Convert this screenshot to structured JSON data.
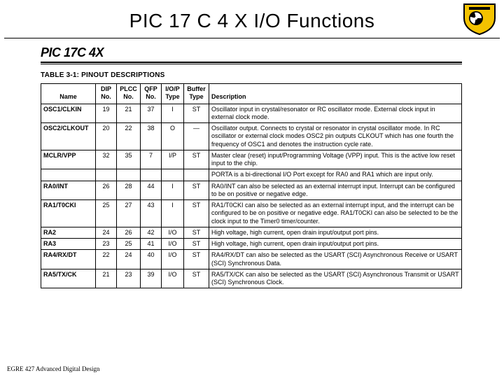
{
  "slide": {
    "title": "PIC 17 C 4 X I/O Functions",
    "chip_label": "PIC 17C 4X",
    "table_caption": "TABLE 3-1:    PINOUT DESCRIPTIONS",
    "footer": "EGRE 427 Advanced Digital Design"
  },
  "logo": {
    "shield_fill": "#f3c200",
    "shield_stroke": "#000000",
    "inner_fill": "#000000"
  },
  "headers": {
    "name": "Name",
    "dip": "DIP No.",
    "plcc": "PLCC No.",
    "qfp": "QFP No.",
    "iop": "I/O/P Type",
    "buffer": "Buffer Type",
    "desc": "Description"
  },
  "rows": [
    {
      "name": "OSC1/CLKIN",
      "dip": "19",
      "plcc": "21",
      "qfp": "37",
      "iop": "I",
      "buf": "ST",
      "desc": "Oscillator input in crystal/resonator or RC oscillator mode. External clock input in external clock mode.",
      "indent": false
    },
    {
      "name": "OSC2/CLKOUT",
      "dip": "20",
      "plcc": "22",
      "qfp": "38",
      "iop": "O",
      "buf": "—",
      "desc": "Oscillator output. Connects to crystal or resonator in crystal oscillator mode. In RC oscillator or external clock modes OSC2 pin outputs CLKOUT which has one fourth the frequency of OSC1 and denotes the instruction cycle rate.",
      "indent": false
    },
    {
      "name": "MCLR/VPP",
      "dip": "32",
      "plcc": "35",
      "qfp": "7",
      "iop": "I/P",
      "buf": "ST",
      "desc": "Master clear (reset) input/Programming Voltage (VPP) input. This is the active low reset input to the chip.",
      "indent": false
    },
    {
      "name": "",
      "dip": "",
      "plcc": "",
      "qfp": "",
      "iop": "",
      "buf": "",
      "desc": "PORTA is a bi-directional I/O Port except for RA0 and RA1 which are input only.",
      "indent": false,
      "group": true
    },
    {
      "name": "RA0/INT",
      "dip": "26",
      "plcc": "28",
      "qfp": "44",
      "iop": "I",
      "buf": "ST",
      "desc": "RA0/INT can also be selected as an external interrupt input. Interrupt can be configured to be on positive or negative edge.",
      "indent": true
    },
    {
      "name": "RA1/T0CKI",
      "dip": "25",
      "plcc": "27",
      "qfp": "43",
      "iop": "I",
      "buf": "ST",
      "desc": "RA1/T0CKI can also be selected as an external interrupt input, and the interrupt can be configured to be on positive or negative edge. RA1/T0CKI can also be selected to be the clock input to the Timer0 timer/counter.",
      "indent": true
    },
    {
      "name": "RA2",
      "dip": "24",
      "plcc": "26",
      "qfp": "42",
      "iop": "I/O",
      "buf": "ST",
      "desc": "High voltage, high current, open drain input/output port pins.",
      "indent": true
    },
    {
      "name": "RA3",
      "dip": "23",
      "plcc": "25",
      "qfp": "41",
      "iop": "I/O",
      "buf": "ST",
      "desc": "High voltage, high current, open drain input/output port pins.",
      "indent": true
    },
    {
      "name": "RA4/RX/DT",
      "dip": "22",
      "plcc": "24",
      "qfp": "40",
      "iop": "I/O",
      "buf": "ST",
      "desc": "RA4/RX/DT can also be selected as the USART (SCI) Asynchronous Receive or USART (SCI) Synchronous Data.",
      "indent": true
    },
    {
      "name": "RA5/TX/CK",
      "dip": "21",
      "plcc": "23",
      "qfp": "39",
      "iop": "I/O",
      "buf": "ST",
      "desc": "RA5/TX/CK can also be selected as the USART (SCI) Asynchronous Transmit or USART (SCI) Synchronous Clock.",
      "indent": true
    }
  ]
}
